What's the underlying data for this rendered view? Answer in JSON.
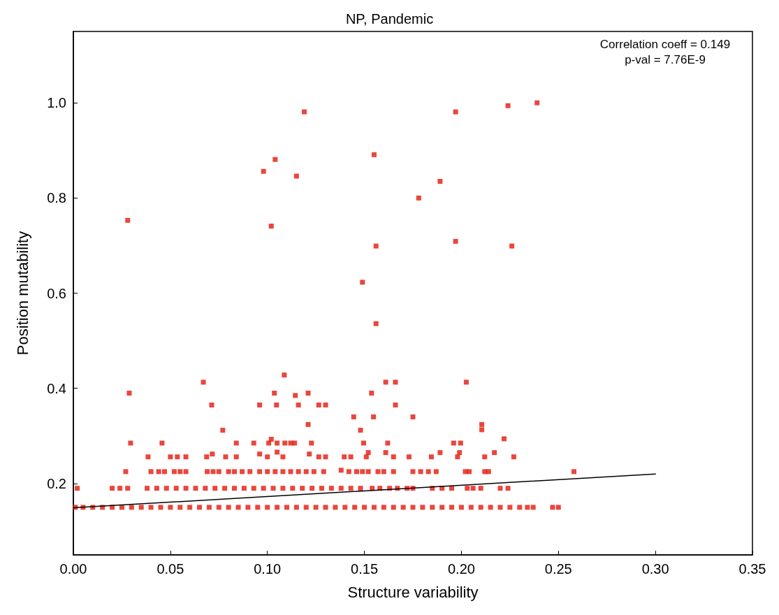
{
  "chart_data": {
    "type": "scatter",
    "title": "NP, Pandemic",
    "xlabel": "Structure variability",
    "ylabel": "Position mutability",
    "annotations": [
      "Correlation coeff = 0.149",
      "p-val = 7.76E-9"
    ],
    "xlim": [
      0,
      0.35
    ],
    "ylim": [
      0.05,
      1.15
    ],
    "xticks": [
      {
        "value": 0,
        "label": "0.00"
      },
      {
        "value": 0.05,
        "label": "0.05"
      },
      {
        "value": 0.1,
        "label": "0.10"
      },
      {
        "value": 0.15,
        "label": "0.15"
      },
      {
        "value": 0.2,
        "label": "0.20"
      },
      {
        "value": 0.25,
        "label": "0.25"
      },
      {
        "value": 0.3,
        "label": "0.30"
      },
      {
        "value": 0.35,
        "label": "0.35"
      }
    ],
    "yticks": [
      0.2,
      0.4,
      0.6,
      0.8,
      {
        "value": 1,
        "label": "1.0"
      }
    ],
    "grid": false,
    "marker": "square",
    "series": [
      {
        "color": "#e5180c",
        "x": [
          0.001,
          0.005,
          0.01,
          0.015,
          0.02,
          0.025,
          0.03,
          0.035,
          0.04,
          0.045,
          0.05,
          0.055,
          0.06,
          0.065,
          0.07,
          0.075,
          0.08,
          0.085,
          0.09,
          0.095,
          0.1,
          0.105,
          0.11,
          0.115,
          0.12,
          0.125,
          0.13,
          0.135,
          0.14,
          0.145,
          0.15,
          0.155,
          0.16,
          0.165,
          0.17,
          0.175,
          0.18,
          0.185,
          0.19,
          0.195,
          0.2,
          0.205,
          0.21,
          0.215,
          0.22,
          0.225,
          0.23,
          0.234,
          0.237,
          0.247,
          0.25
        ],
        "values": [
          0.15,
          0.15,
          0.15,
          0.15,
          0.15,
          0.15,
          0.15,
          0.15,
          0.15,
          0.15,
          0.15,
          0.15,
          0.15,
          0.15,
          0.15,
          0.15,
          0.15,
          0.15,
          0.15,
          0.15,
          0.15,
          0.15,
          0.15,
          0.15,
          0.15,
          0.15,
          0.15,
          0.15,
          0.15,
          0.15,
          0.15,
          0.15,
          0.15,
          0.15,
          0.15,
          0.15,
          0.15,
          0.15,
          0.15,
          0.15,
          0.15,
          0.15,
          0.15,
          0.15,
          0.15,
          0.15,
          0.15,
          0.15,
          0.15,
          0.15,
          0.15
        ]
      },
      {
        "color": "#e5180c",
        "x": [
          0.002,
          0.02,
          0.024,
          0.028,
          0.038,
          0.043,
          0.048,
          0.053,
          0.058,
          0.063,
          0.068,
          0.073,
          0.078,
          0.083,
          0.088,
          0.093,
          0.098,
          0.103,
          0.108,
          0.113,
          0.118,
          0.123,
          0.128,
          0.133,
          0.138,
          0.143,
          0.148,
          0.154,
          0.158,
          0.163,
          0.167,
          0.172,
          0.175,
          0.185,
          0.19,
          0.195,
          0.203,
          0.206,
          0.21,
          0.22,
          0.224
        ],
        "values": [
          0.19,
          0.19,
          0.19,
          0.19,
          0.19,
          0.19,
          0.19,
          0.19,
          0.19,
          0.19,
          0.19,
          0.19,
          0.19,
          0.19,
          0.19,
          0.19,
          0.19,
          0.19,
          0.19,
          0.19,
          0.19,
          0.19,
          0.19,
          0.19,
          0.19,
          0.19,
          0.19,
          0.19,
          0.19,
          0.19,
          0.19,
          0.19,
          0.19,
          0.19,
          0.19,
          0.19,
          0.19,
          0.19,
          0.19,
          0.19,
          0.19
        ]
      },
      {
        "color": "#e5180c",
        "x": [
          0.027,
          0.04,
          0.044,
          0.047,
          0.052,
          0.055,
          0.058,
          0.069,
          0.072,
          0.075,
          0.08,
          0.083,
          0.087,
          0.091,
          0.096,
          0.1,
          0.104,
          0.108,
          0.112,
          0.116,
          0.12,
          0.124,
          0.129,
          0.138,
          0.142,
          0.146,
          0.149,
          0.152,
          0.157,
          0.16,
          0.165,
          0.175,
          0.179,
          0.183,
          0.187,
          0.202,
          0.204,
          0.212,
          0.214,
          0.258
        ],
        "values": [
          0.225,
          0.225,
          0.225,
          0.225,
          0.225,
          0.225,
          0.225,
          0.225,
          0.225,
          0.225,
          0.225,
          0.225,
          0.225,
          0.225,
          0.225,
          0.225,
          0.225,
          0.225,
          0.225,
          0.225,
          0.225,
          0.225,
          0.225,
          0.228,
          0.225,
          0.225,
          0.225,
          0.225,
          0.225,
          0.225,
          0.225,
          0.225,
          0.225,
          0.225,
          0.225,
          0.225,
          0.225,
          0.225,
          0.225,
          0.225
        ]
      },
      {
        "color": "#e5180c",
        "x": [
          0.0385,
          0.05,
          0.0536,
          0.058,
          0.0687,
          0.0785,
          0.084,
          0.1,
          0.108,
          0.1265,
          0.13,
          0.1396,
          0.143,
          0.151,
          0.165,
          0.173,
          0.1845,
          0.198,
          0.212,
          0.227,
          0.096,
          0.0716,
          0.1216,
          0.152,
          0.161,
          0.189,
          0.199,
          0.217,
          0.105
        ],
        "values": [
          0.256,
          0.256,
          0.256,
          0.256,
          0.256,
          0.256,
          0.256,
          0.256,
          0.256,
          0.256,
          0.256,
          0.256,
          0.256,
          0.256,
          0.256,
          0.256,
          0.256,
          0.256,
          0.256,
          0.256,
          0.262,
          0.262,
          0.262,
          0.265,
          0.265,
          0.265,
          0.265,
          0.265,
          0.266
        ]
      },
      {
        "color": "#e5180c",
        "x": [
          0.0295,
          0.0457,
          0.084,
          0.093,
          0.1007,
          0.105,
          0.109,
          0.112,
          0.114,
          0.1227,
          0.1496,
          0.162,
          0.196,
          0.1996,
          0.102,
          0.222,
          0.077,
          0.148,
          0.2105,
          0.121,
          0.2105,
          0.1445,
          0.1547,
          0.175,
          0.0713,
          0.096,
          0.1047,
          0.116,
          0.1265,
          0.13,
          0.166,
          0.0288,
          0.1036,
          0.121,
          0.1537,
          0.1144,
          0.067,
          0.161,
          0.166,
          0.2025,
          0.1087
        ],
        "values": [
          0.285,
          0.285,
          0.285,
          0.285,
          0.285,
          0.285,
          0.285,
          0.285,
          0.285,
          0.285,
          0.285,
          0.285,
          0.285,
          0.285,
          0.293,
          0.294,
          0.312,
          0.312,
          0.313,
          0.324,
          0.324,
          0.34,
          0.34,
          0.34,
          0.365,
          0.365,
          0.365,
          0.365,
          0.365,
          0.365,
          0.365,
          0.39,
          0.39,
          0.39,
          0.39,
          0.385,
          0.413,
          0.413,
          0.413,
          0.413,
          0.428
        ]
      },
      {
        "color": "#e5180c",
        "x": [
          0.028,
          0.098,
          0.104,
          0.102,
          0.119,
          0.197,
          0.224,
          0.239,
          0.155,
          0.115,
          0.189,
          0.178,
          0.156,
          0.197,
          0.226,
          0.149,
          0.156
        ],
        "values": [
          0.753,
          0.856,
          0.881,
          0.741,
          0.981,
          0.981,
          0.994,
          1.0,
          0.891,
          0.846,
          0.835,
          0.8,
          0.699,
          0.709,
          0.699,
          0.623,
          0.536
        ]
      },
      {
        "type": "line",
        "color": "#000000",
        "marker": "none",
        "line_style": "solid",
        "x": [
          0,
          0.3
        ],
        "values": [
          0.149,
          0.22
        ]
      }
    ]
  }
}
